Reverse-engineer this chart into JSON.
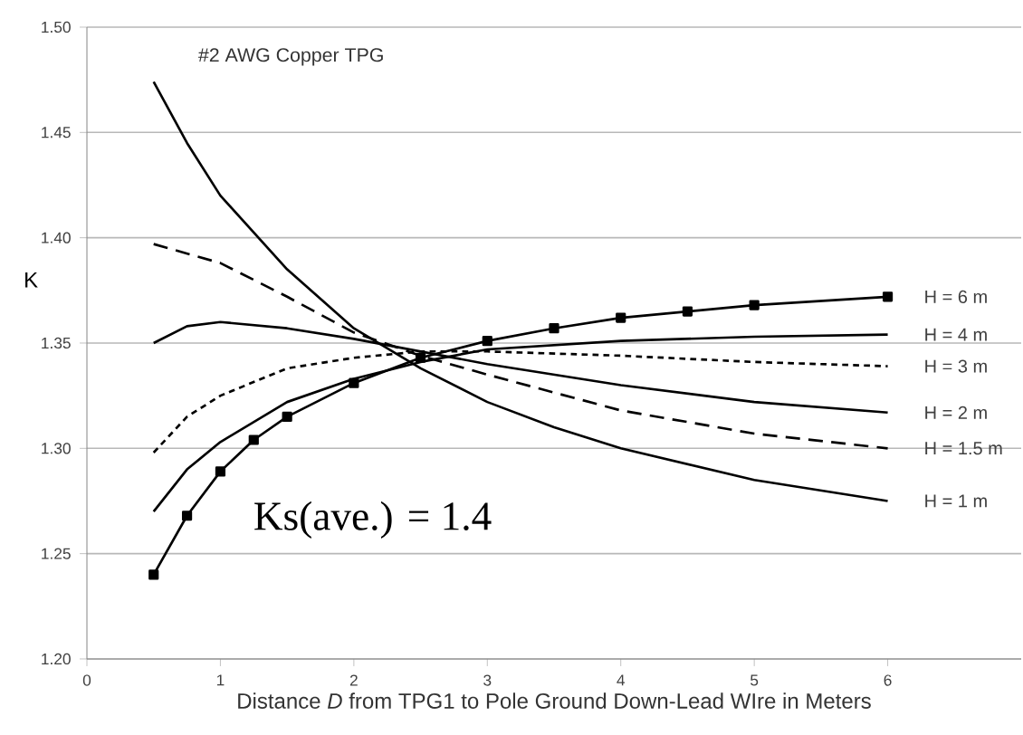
{
  "chart_data": {
    "type": "line",
    "title": "#2 AWG Copper TPG",
    "xlabel": "Distance *D* from TPG1 to Pole Ground Down-Lead WIre in Meters",
    "ylabel": "K",
    "xlim": [
      0,
      7
    ],
    "ylim": [
      1.2,
      1.5
    ],
    "xticks": [
      0,
      1,
      2,
      3,
      4,
      5,
      6
    ],
    "yticks": [
      {
        "value": 1.2,
        "label": "1.20"
      },
      {
        "value": 1.25,
        "label": "1.25"
      },
      {
        "value": 1.3,
        "label": "1.30"
      },
      {
        "value": 1.35,
        "label": "1.35"
      },
      {
        "value": 1.4,
        "label": "1.40"
      },
      {
        "value": 1.45,
        "label": "1.45"
      },
      {
        "value": 1.5,
        "label": "1.50"
      }
    ],
    "grid": "y",
    "legend": false,
    "marker": "none",
    "annotations": [
      "Ks(ave.) = 1.4"
    ],
    "series": [
      {
        "name": "H = 6 m",
        "color": "#000000",
        "line_style": "solid",
        "marker": "square",
        "x": [
          0.5,
          0.75,
          1,
          1.25,
          1.5,
          2,
          2.5,
          3,
          3.5,
          4,
          4.5,
          5,
          6
        ],
        "values": [
          1.24,
          1.268,
          1.289,
          1.304,
          1.315,
          1.331,
          1.343,
          1.351,
          1.357,
          1.362,
          1.365,
          1.368,
          1.372
        ]
      },
      {
        "name": "H = 4 m",
        "color": "#000000",
        "line_style": "solid",
        "x": [
          0.5,
          0.75,
          1,
          1.5,
          2,
          2.5,
          3,
          4,
          5,
          6
        ],
        "values": [
          1.27,
          1.29,
          1.303,
          1.322,
          1.333,
          1.341,
          1.347,
          1.351,
          1.353,
          1.354
        ]
      },
      {
        "name": "H = 3 m",
        "color": "#000000",
        "line_style": "dotted",
        "x": [
          0.5,
          0.75,
          1,
          1.5,
          2,
          2.5,
          3,
          4,
          5,
          6
        ],
        "values": [
          1.298,
          1.315,
          1.325,
          1.338,
          1.343,
          1.346,
          1.346,
          1.344,
          1.341,
          1.339
        ]
      },
      {
        "name": "H = 2 m",
        "color": "#000000",
        "line_style": "solid",
        "x": [
          0.5,
          0.75,
          1,
          1.5,
          2,
          2.5,
          3,
          4,
          5,
          6
        ],
        "values": [
          1.35,
          1.358,
          1.36,
          1.357,
          1.352,
          1.346,
          1.34,
          1.33,
          1.322,
          1.317
        ]
      },
      {
        "name": "H = 1.5 m",
        "color": "#000000",
        "line_style": "dashed",
        "x": [
          0.5,
          1,
          1.5,
          2,
          2.5,
          3,
          4,
          5,
          6
        ],
        "values": [
          1.397,
          1.388,
          1.372,
          1.355,
          1.344,
          1.335,
          1.318,
          1.307,
          1.3
        ]
      },
      {
        "name": "H = 1 m",
        "color": "#000000",
        "line_style": "solid",
        "x": [
          0.5,
          0.75,
          1,
          1.5,
          2,
          2.5,
          3,
          3.5,
          4,
          5,
          6
        ],
        "values": [
          1.474,
          1.445,
          1.42,
          1.385,
          1.357,
          1.338,
          1.322,
          1.31,
          1.3,
          1.285,
          1.275
        ]
      }
    ]
  }
}
